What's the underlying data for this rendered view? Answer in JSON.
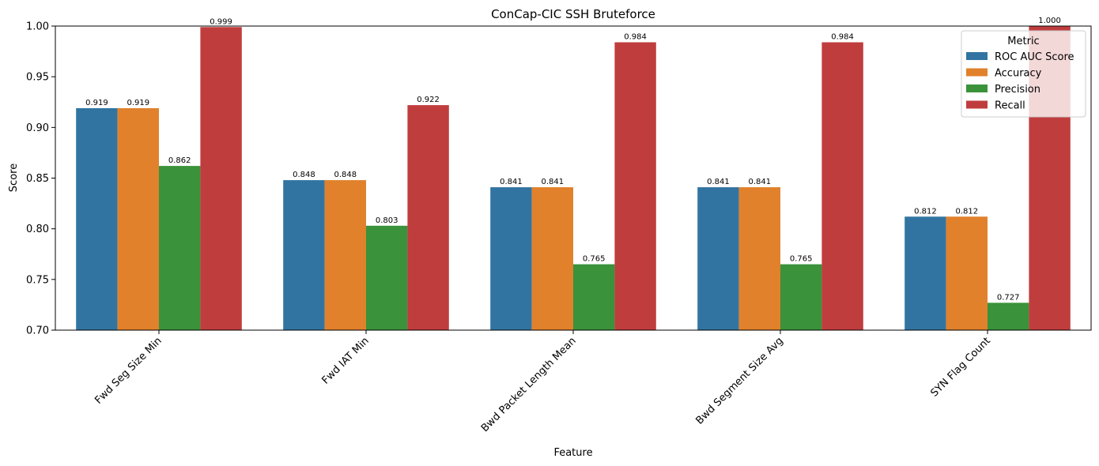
{
  "chart_data": {
    "type": "bar",
    "title": "ConCap-CIC SSH Bruteforce",
    "xlabel": "Feature",
    "ylabel": "Score",
    "ylim": [
      0.7,
      1.0
    ],
    "yticks": [
      "0.70",
      "0.75",
      "0.80",
      "0.85",
      "0.90",
      "0.95",
      "1.00"
    ],
    "ytick_values": [
      0.7,
      0.75,
      0.8,
      0.85,
      0.9,
      0.95,
      1.0
    ],
    "categories": [
      "Fwd Seg Size Min",
      "Fwd IAT Min",
      "Bwd Packet Length Mean",
      "Bwd Segment Size Avg",
      "SYN Flag Count"
    ],
    "legend": {
      "title": "Metric",
      "placement": "top-right"
    },
    "series": [
      {
        "name": "ROC AUC Score",
        "color": "#3274a1",
        "values": [
          0.919,
          0.848,
          0.841,
          0.841,
          0.812
        ],
        "labels": [
          "0.919",
          "0.848",
          "0.841",
          "0.841",
          "0.812"
        ]
      },
      {
        "name": "Accuracy",
        "color": "#e1812c",
        "values": [
          0.919,
          0.848,
          0.841,
          0.841,
          0.812
        ],
        "labels": [
          "0.919",
          "0.848",
          "0.841",
          "0.841",
          "0.812"
        ]
      },
      {
        "name": "Precision",
        "color": "#3a923a",
        "values": [
          0.862,
          0.803,
          0.765,
          0.765,
          0.727
        ],
        "labels": [
          "0.862",
          "0.803",
          "0.765",
          "0.765",
          "0.727"
        ]
      },
      {
        "name": "Recall",
        "color": "#c03d3e",
        "values": [
          0.999,
          0.922,
          0.984,
          0.984,
          1.0
        ],
        "labels": [
          "0.999",
          "0.922",
          "0.984",
          "0.984",
          "1.000"
        ]
      }
    ],
    "grid": false
  }
}
